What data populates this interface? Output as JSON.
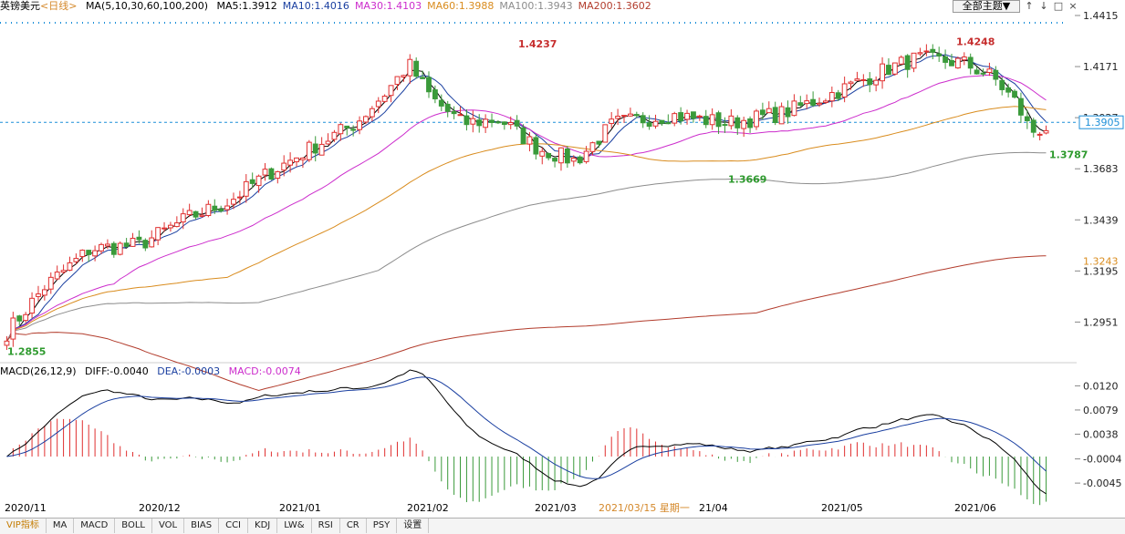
{
  "header": {
    "symbol": "英镑美元",
    "period": "<日线>",
    "ma_params": "MA(5,10,30,60,100,200)",
    "ma_values": [
      {
        "label": "MA5:1.3912",
        "color": "#000000"
      },
      {
        "label": "MA10:1.4016",
        "color": "#1a3fa0"
      },
      {
        "label": "MA30:1.4103",
        "color": "#cc2ccc"
      },
      {
        "label": "MA60:1.3988",
        "color": "#d98c1e"
      },
      {
        "label": "MA100:1.3943",
        "color": "#8c8c8c"
      },
      {
        "label": "MA200:1.3602",
        "color": "#b23c2c"
      }
    ],
    "theme_button": "全部主题▼",
    "controls": [
      "↑",
      "↓",
      "□",
      "×"
    ]
  },
  "macd_header": {
    "params": "MACD(26,12,9)",
    "diff": "DIFF:-0.0040",
    "dea": "DEA:-0.0003",
    "macd": "MACD:-0.0074"
  },
  "tabs": [
    "VIP指标",
    "MA",
    "MACD",
    "BOLL",
    "VOL",
    "BIAS",
    "CCI",
    "KDJ",
    "LW&",
    "RSI",
    "CR",
    "PSY",
    "设置"
  ],
  "date_labels": [
    {
      "text": "2020/11"
    },
    {
      "text": "2020/12"
    },
    {
      "text": "2021/01"
    },
    {
      "text": "2021/02"
    },
    {
      "text": "2021/03"
    },
    {
      "text": "2021/03/15 星期一",
      "highlight": true
    },
    {
      "text": "21/04"
    },
    {
      "text": "2021/05"
    },
    {
      "text": "2021/06"
    }
  ],
  "chart_data": [
    {
      "type": "candlestick",
      "title": "英镑美元",
      "y_ticks": [
        "1.4415",
        "1.4171",
        "1.3927",
        "1.3683",
        "1.3439",
        "1.3195",
        "1.2951"
      ],
      "ylim": [
        1.277,
        1.4415
      ],
      "current_price": "1.3905",
      "ma_label": "1.3243",
      "annotations": [
        {
          "text": "1.4237",
          "value": 1.4237,
          "color": "#c62d2d"
        },
        {
          "text": "1.4248",
          "value": 1.4248,
          "color": "#c62d2d"
        },
        {
          "text": "1.3669",
          "value": 1.3669,
          "color": "#2e9a2e"
        },
        {
          "text": "1.3787",
          "value": 1.3787,
          "color": "#2e9a2e"
        },
        {
          "text": "1.2855",
          "value": 1.2855,
          "color": "#2e9a2e"
        }
      ],
      "series": [
        {
          "name": "MA5",
          "color": "#000000"
        },
        {
          "name": "MA10",
          "color": "#1a3fa0"
        },
        {
          "name": "MA30",
          "color": "#cc2ccc"
        },
        {
          "name": "MA60",
          "color": "#d98c1e"
        },
        {
          "name": "MA100",
          "color": "#8c8c8c"
        },
        {
          "name": "MA200",
          "color": "#b23c2c"
        }
      ],
      "up_color": "#e03030",
      "down_color": "#3a9a3a"
    },
    {
      "type": "bar",
      "title": "MACD(26,12,9)",
      "y_ticks": [
        "0.0120",
        "0.0079",
        "0.0038",
        "-0.0004",
        "-0.0045"
      ],
      "ylim": [
        -0.0068,
        0.0133
      ],
      "series": [
        {
          "name": "DIFF",
          "color": "#000000"
        },
        {
          "name": "DEA",
          "color": "#1a3fa0"
        },
        {
          "name": "MACD",
          "color": "#cc2ccc"
        }
      ]
    }
  ]
}
